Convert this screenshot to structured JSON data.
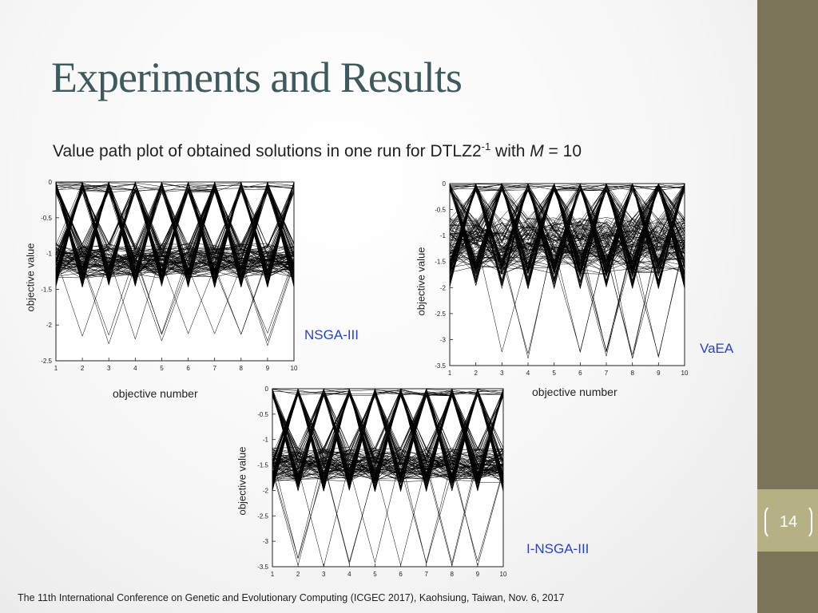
{
  "slide": {
    "title": "Experiments and Results",
    "subtitle_main": "Value path plot of obtained solutions in one run for DTLZ2",
    "subtitle_sup": "-1",
    "subtitle_with": " with ",
    "subtitle_var": "M",
    "subtitle_tail": " = 10",
    "page_number": "14",
    "footer": "The 11th International Conference on Genetic and Evolutionary Computing (ICGEC 2017), Kaohsiung, Taiwan, Nov. 6, 2017",
    "colors": {
      "title": "#3f5a5c",
      "algo_label": "#2442d8",
      "sidebar": "#7b7458",
      "page_box": "#b6b184"
    }
  },
  "chart_data": [
    {
      "type": "line",
      "name": "NSGA-III",
      "algorithm_label": "NSGA-III",
      "xlabel": "objective number",
      "ylabel": "objective value",
      "x": [
        1,
        2,
        3,
        4,
        5,
        6,
        7,
        8,
        9,
        10
      ],
      "xlim": [
        1,
        10
      ],
      "ylim": [
        -2.5,
        0
      ],
      "yticks": [
        "0",
        "-0.5",
        "-1",
        "-1.5",
        "-2",
        "-2.5"
      ],
      "xticks": [
        "1",
        "2",
        "3",
        "4",
        "5",
        "6",
        "7",
        "8",
        "9",
        "10"
      ],
      "band_center": -1.1,
      "band_spread": 0.25,
      "min_dip": -2.3,
      "grid": false
    },
    {
      "type": "line",
      "name": "VaEA",
      "algorithm_label": "VaEA",
      "xlabel": "objective number",
      "ylabel": "objective value",
      "x": [
        1,
        2,
        3,
        4,
        5,
        6,
        7,
        8,
        9,
        10
      ],
      "xlim": [
        1,
        10
      ],
      "ylim": [
        -3.5,
        0
      ],
      "yticks": [
        "0",
        "-0.5",
        "-1",
        "-1.5",
        "-2",
        "-2.5",
        "-3",
        "-3.5"
      ],
      "xticks": [
        "1",
        "2",
        "3",
        "4",
        "5",
        "6",
        "7",
        "8",
        "9",
        "10"
      ],
      "band_center": -1.2,
      "band_spread": 0.55,
      "min_dip": -3.4,
      "grid": false
    },
    {
      "type": "line",
      "name": "I-NSGA-III",
      "algorithm_label": "I-NSGA-III",
      "xlabel": "",
      "ylabel": "objective value",
      "x": [
        1,
        2,
        3,
        4,
        5,
        6,
        7,
        8,
        9,
        10
      ],
      "xlim": [
        1,
        10
      ],
      "ylim": [
        -3.5,
        0
      ],
      "yticks": [
        "0",
        "-0.5",
        "-1",
        "-1.5",
        "-2",
        "-2.5",
        "-3",
        "-3.5"
      ],
      "xticks": [
        "1",
        "2",
        "3",
        "4",
        "5",
        "6",
        "7",
        "8",
        "9",
        "10"
      ],
      "band_center": -1.5,
      "band_spread": 0.35,
      "min_dip": -3.5,
      "grid": false
    }
  ]
}
